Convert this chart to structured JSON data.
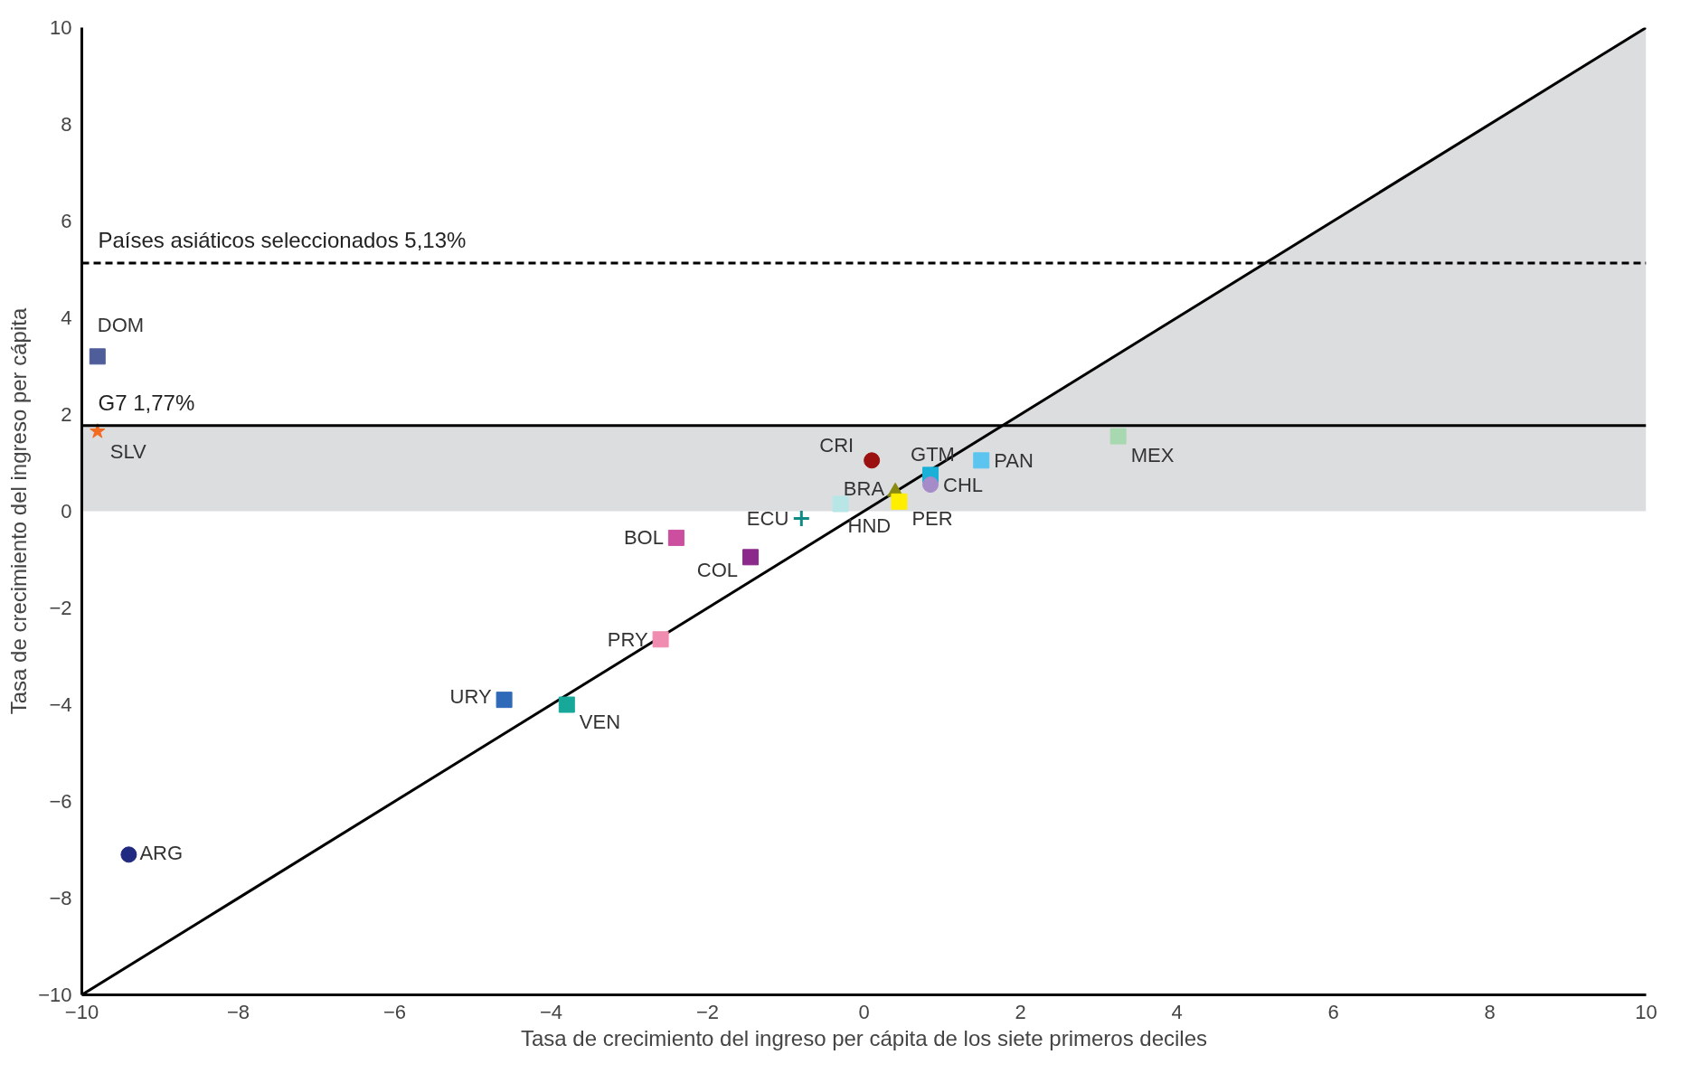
{
  "chart_data": {
    "type": "scatter",
    "xlabel": "Tasa de crecimiento del ingreso per cápita de los siete primeros deciles",
    "ylabel": "Tasa de crecimiento del ingreso per cápita",
    "xlim": [
      -10,
      10
    ],
    "ylim": [
      -10,
      10
    ],
    "xticks": [
      -10,
      -8,
      -6,
      -4,
      -2,
      0,
      2,
      4,
      6,
      8,
      10
    ],
    "yticks": [
      -10,
      -8,
      -6,
      -4,
      -2,
      0,
      2,
      4,
      6,
      8,
      10
    ],
    "grid": false,
    "bands": [
      {
        "axis": "y",
        "from": 0,
        "to": 1.77,
        "color": "#dcdddf"
      }
    ],
    "ref_lines": [
      {
        "axis": "y",
        "value": 5.13,
        "label": "Países asiáticos seleccionados 5,13%",
        "color": "#000000",
        "line_style": "dashed"
      },
      {
        "axis": "y",
        "value": 1.77,
        "label": "G7 1,77%",
        "color": "#000000",
        "line_style": "solid"
      }
    ],
    "series": [
      {
        "type": "area",
        "color": "#dcdddf",
        "x": [
          1.77,
          10,
          10
        ],
        "values": [
          1.77,
          10,
          1.77
        ]
      },
      {
        "type": "line",
        "color": "#000000",
        "x": [
          -10,
          10
        ],
        "values": [
          -10,
          10
        ]
      },
      {
        "name": "DOM",
        "color": "#4f5e9a",
        "marker": "square",
        "x": [
          -9.8
        ],
        "values": [
          3.2
        ]
      },
      {
        "name": "SLV",
        "color": "#f26b21",
        "marker": "star",
        "x": [
          -9.8
        ],
        "values": [
          1.65
        ]
      },
      {
        "name": "ARG",
        "color": "#1f2a80",
        "marker": "circle",
        "x": [
          -9.4
        ],
        "values": [
          -7.1
        ]
      },
      {
        "name": "URY",
        "color": "#2f6ab8",
        "marker": "square",
        "x": [
          -4.6
        ],
        "values": [
          -3.9
        ]
      },
      {
        "name": "VEN",
        "color": "#17a89a",
        "marker": "square",
        "x": [
          -3.8
        ],
        "values": [
          -4.0
        ]
      },
      {
        "name": "PRY",
        "color": "#f08cb0",
        "marker": "square",
        "x": [
          -2.6
        ],
        "values": [
          -2.65
        ]
      },
      {
        "name": "BOL",
        "color": "#cc4f9f",
        "marker": "square",
        "x": [
          -2.4
        ],
        "values": [
          -0.55
        ]
      },
      {
        "name": "COL",
        "color": "#8b2a8a",
        "marker": "square",
        "x": [
          -1.45
        ],
        "values": [
          -0.95
        ]
      },
      {
        "name": "ECU",
        "color": "#0f8a82",
        "marker": "cross",
        "x": [
          -0.8
        ],
        "values": [
          -0.15
        ]
      },
      {
        "name": "HND",
        "color": "#b8e6e6",
        "marker": "square",
        "x": [
          -0.3
        ],
        "values": [
          0.15
        ]
      },
      {
        "name": "CRI",
        "color": "#9b1010",
        "marker": "circle",
        "x": [
          0.1
        ],
        "values": [
          1.05
        ]
      },
      {
        "name": "BRA",
        "color": "#8a8a10",
        "marker": "triangle",
        "x": [
          0.4
        ],
        "values": [
          0.4
        ]
      },
      {
        "name": "PER",
        "color": "#ffee00",
        "marker": "square",
        "x": [
          0.45
        ],
        "values": [
          0.2
        ]
      },
      {
        "name": "GTM",
        "color": "#1ab0d8",
        "marker": "square",
        "x": [
          0.85
        ],
        "values": [
          0.75
        ]
      },
      {
        "name": "CHL",
        "color": "#a58bc8",
        "marker": "circle",
        "x": [
          0.85
        ],
        "values": [
          0.55
        ]
      },
      {
        "name": "PAN",
        "color": "#5bc5f0",
        "marker": "square",
        "x": [
          1.5
        ],
        "values": [
          1.05
        ]
      },
      {
        "name": "MEX",
        "color": "#a8d8b0",
        "marker": "square",
        "x": [
          3.25
        ],
        "values": [
          1.55
        ]
      }
    ]
  }
}
